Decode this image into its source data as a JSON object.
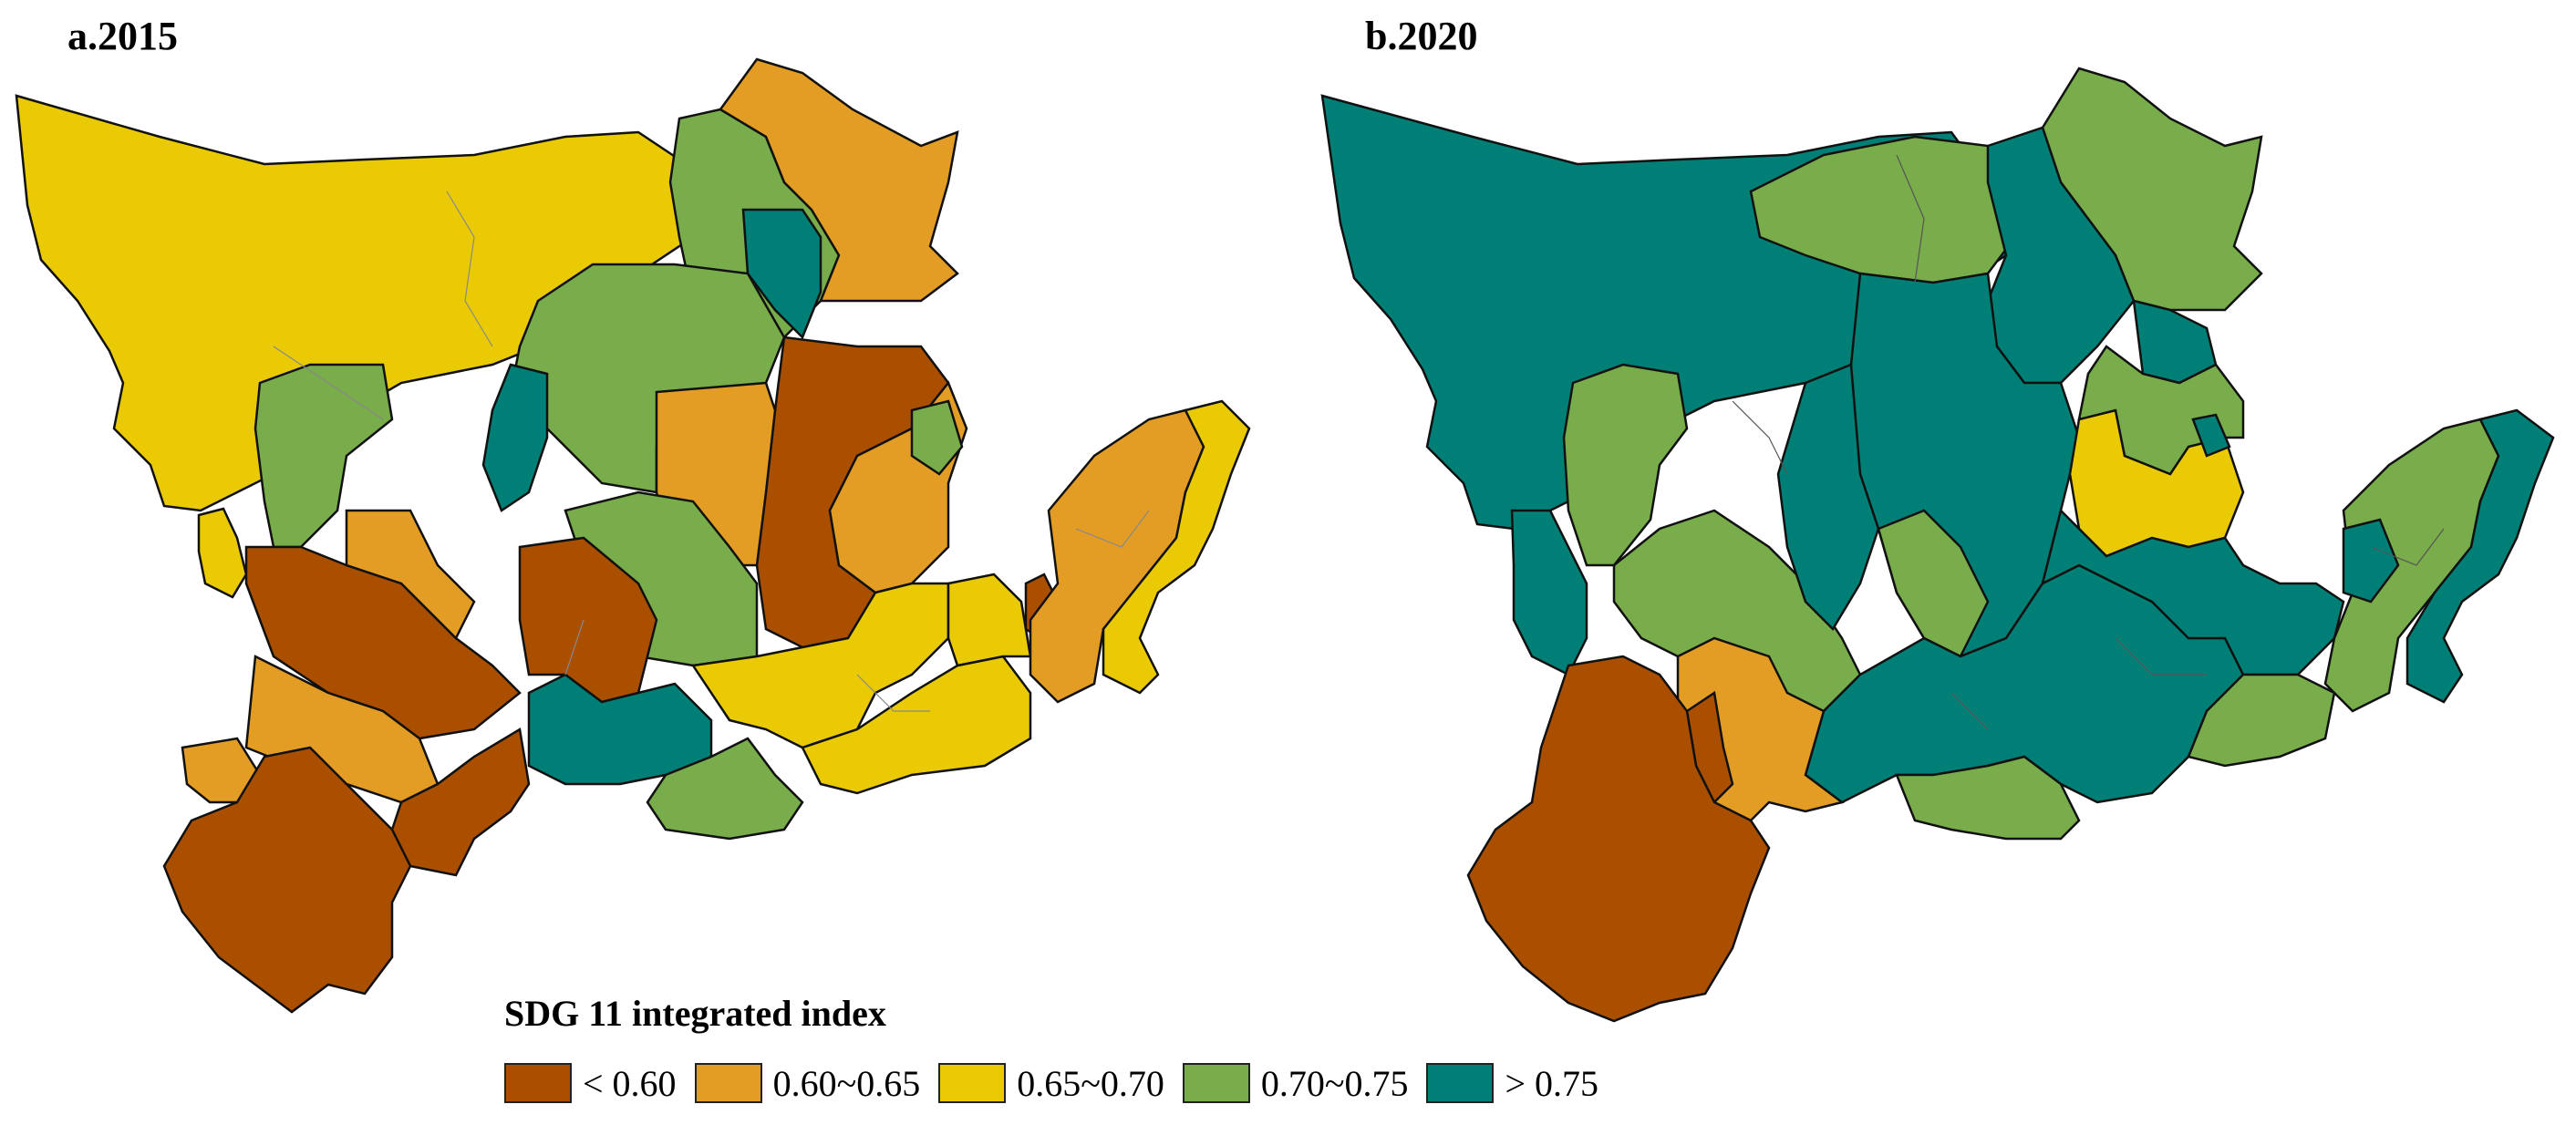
{
  "panels": [
    {
      "label": "a.2015"
    },
    {
      "label": "b.2020"
    }
  ],
  "legend": {
    "title": "SDG 11 integrated index",
    "classes": [
      {
        "label": "< 0.60",
        "color": "#AA4F00"
      },
      {
        "label": "0.60~0.65",
        "color": "#E39D25"
      },
      {
        "label": "0.65~0.70",
        "color": "#EACA05"
      },
      {
        "label": "0.70~0.75",
        "color": "#79AC4B"
      },
      {
        "label": "> 0.75",
        "color": "#007F77"
      }
    ]
  }
}
